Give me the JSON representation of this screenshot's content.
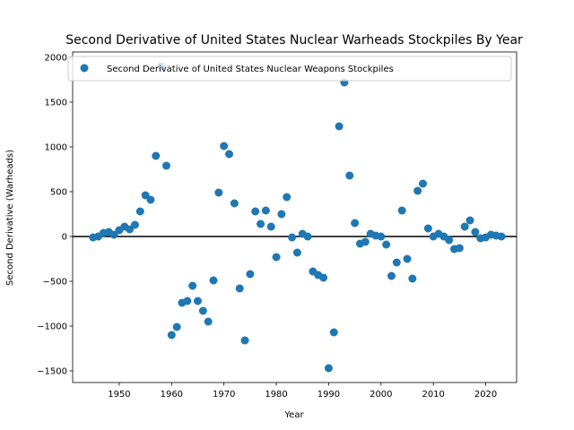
{
  "chart_data": {
    "type": "scatter",
    "title": "Second Derivative of United States Nuclear Warheads Stockpiles By Year",
    "xlabel": "Year",
    "ylabel": "Second Derivative (Warheads)",
    "xlim": [
      1941.1,
      2025.9
    ],
    "ylim": [
      -1630,
      2060
    ],
    "xticks": [
      1950,
      1960,
      1970,
      1980,
      1990,
      2000,
      2010,
      2020
    ],
    "yticks": [
      -1500,
      -1000,
      -500,
      0,
      500,
      1000,
      1500,
      2000
    ],
    "ytick_labels": [
      "−1500",
      "−1000",
      "−500",
      "0",
      "500",
      "1000",
      "1500",
      "2000"
    ],
    "reference_line": 0,
    "legend_position": "upper-left",
    "grid": false,
    "colors": {
      "marker": "#1f77b4",
      "reference_line": "#000000"
    },
    "series": [
      {
        "name": "Second Derivative of United States Nuclear Weapons Stockpiles",
        "x": [
          1945,
          1946,
          1947,
          1948,
          1949,
          1950,
          1951,
          1952,
          1953,
          1954,
          1955,
          1956,
          1957,
          1958,
          1959,
          1960,
          1961,
          1962,
          1963,
          1964,
          1965,
          1966,
          1967,
          1968,
          1969,
          1970,
          1971,
          1972,
          1973,
          1974,
          1975,
          1976,
          1977,
          1978,
          1979,
          1980,
          1981,
          1982,
          1983,
          1984,
          1985,
          1986,
          1987,
          1988,
          1989,
          1990,
          1991,
          1992,
          1993,
          1994,
          1995,
          1996,
          1997,
          1998,
          1999,
          2000,
          2001,
          2002,
          2003,
          2004,
          2005,
          2006,
          2007,
          2008,
          2009,
          2010,
          2011,
          2012,
          2013,
          2014,
          2015,
          2016,
          2017,
          2018,
          2019,
          2020,
          2021,
          2022,
          2023
        ],
        "y": [
          -10,
          0,
          40,
          50,
          20,
          70,
          110,
          80,
          130,
          280,
          460,
          410,
          900,
          1900,
          790,
          -1100,
          -1010,
          -740,
          -720,
          -550,
          -720,
          -830,
          -950,
          -490,
          490,
          1010,
          920,
          370,
          -580,
          -1160,
          -420,
          280,
          140,
          290,
          110,
          -230,
          250,
          440,
          -10,
          -180,
          30,
          0,
          -390,
          -430,
          -460,
          -1470,
          -1070,
          1230,
          1720,
          680,
          150,
          -80,
          -60,
          30,
          10,
          0,
          -90,
          -440,
          -290,
          290,
          -250,
          -470,
          510,
          590,
          90,
          0,
          30,
          0,
          -40,
          -140,
          -130,
          110,
          180,
          50,
          -20,
          -10,
          20,
          10,
          0
        ]
      }
    ]
  }
}
